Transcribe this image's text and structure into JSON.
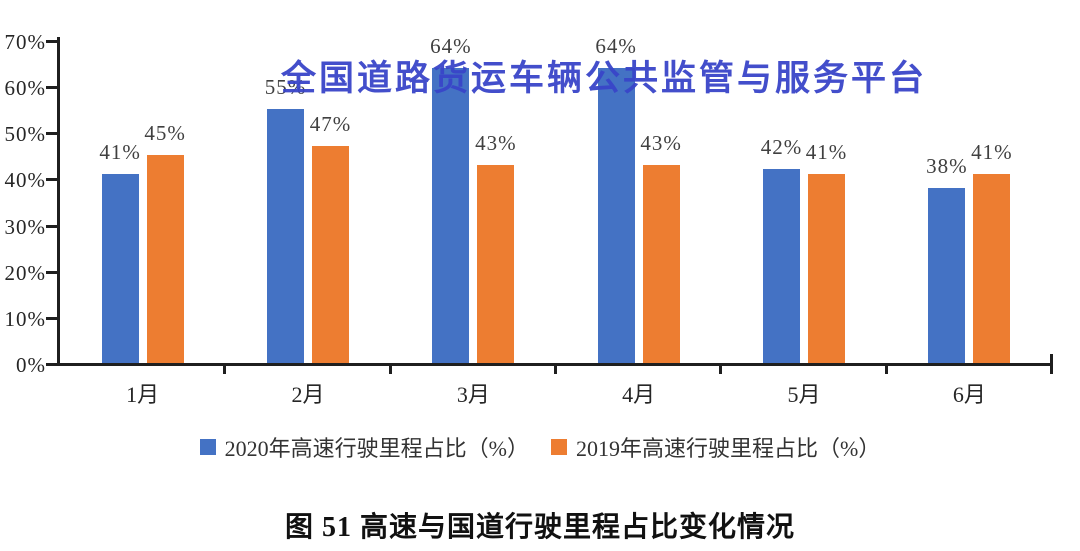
{
  "page": {
    "background": "#ffffff"
  },
  "watermark": {
    "text": "全国道路货运车辆公共监管与服务平台",
    "color": "#3945C9"
  },
  "caption": "图 51 高速与国道行驶里程占比变化情况",
  "chart_data": {
    "type": "bar",
    "categories": [
      "1月",
      "2月",
      "3月",
      "4月",
      "5月",
      "6月"
    ],
    "series": [
      {
        "name": "2020年高速行驶里程占比（%）",
        "color": "#4472C4",
        "values": [
          41,
          55,
          64,
          64,
          42,
          38
        ]
      },
      {
        "name": "2019年高速行驶里程占比（%）",
        "color": "#ED7D31",
        "values": [
          45,
          47,
          43,
          43,
          41,
          41
        ]
      }
    ],
    "ylim": [
      0,
      70
    ],
    "ytick_step": 10,
    "ytick_suffix": "%",
    "data_label_suffix": "%",
    "grid": false,
    "legend_position": "bottom",
    "axis_color": "#1f1f1f",
    "label_color": "#404040"
  }
}
